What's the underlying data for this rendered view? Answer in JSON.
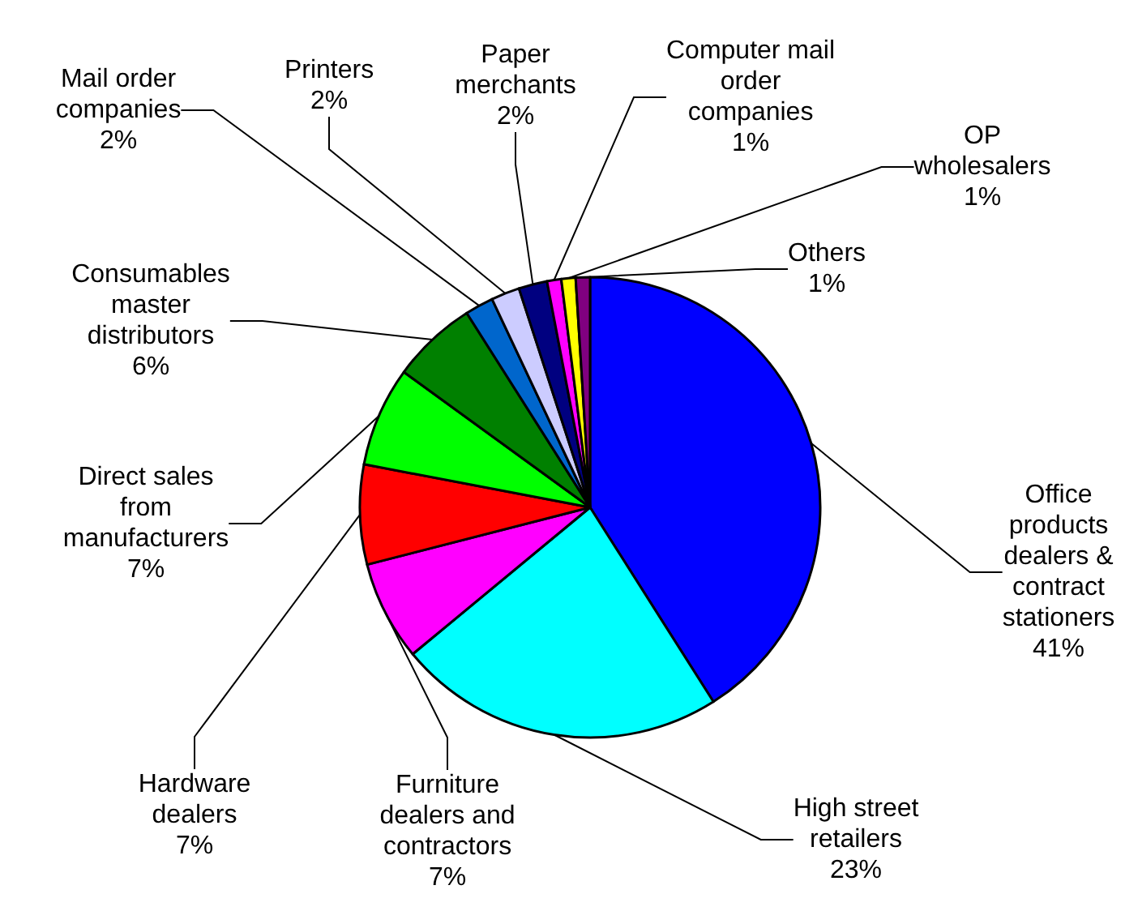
{
  "chart_data": {
    "type": "pie",
    "categories": [
      "Office products dealers & contract stationers",
      "High street retailers",
      "Furniture dealers and contractors",
      "Hardware dealers",
      "Direct sales from manufacturers",
      "Consumables master distributors",
      "Mail order companies",
      "Printers",
      "Paper merchants",
      "Computer mail order companies",
      "OP wholesalers",
      "Others"
    ],
    "values": [
      41,
      23,
      7,
      7,
      7,
      6,
      2,
      2,
      2,
      1,
      1,
      1
    ],
    "colors": [
      "#0000ff",
      "#00ffff",
      "#ff00ff",
      "#ff0000",
      "#00ff00",
      "#008000",
      "#0066cc",
      "#ccccff",
      "#000080",
      "#ff00ff",
      "#ffff00",
      "#800080"
    ],
    "value_labels": [
      "41%",
      "23%",
      "7%",
      "7%",
      "7%",
      "6%",
      "2%",
      "2%",
      "2%",
      "1%",
      "1%",
      "1%"
    ]
  }
}
